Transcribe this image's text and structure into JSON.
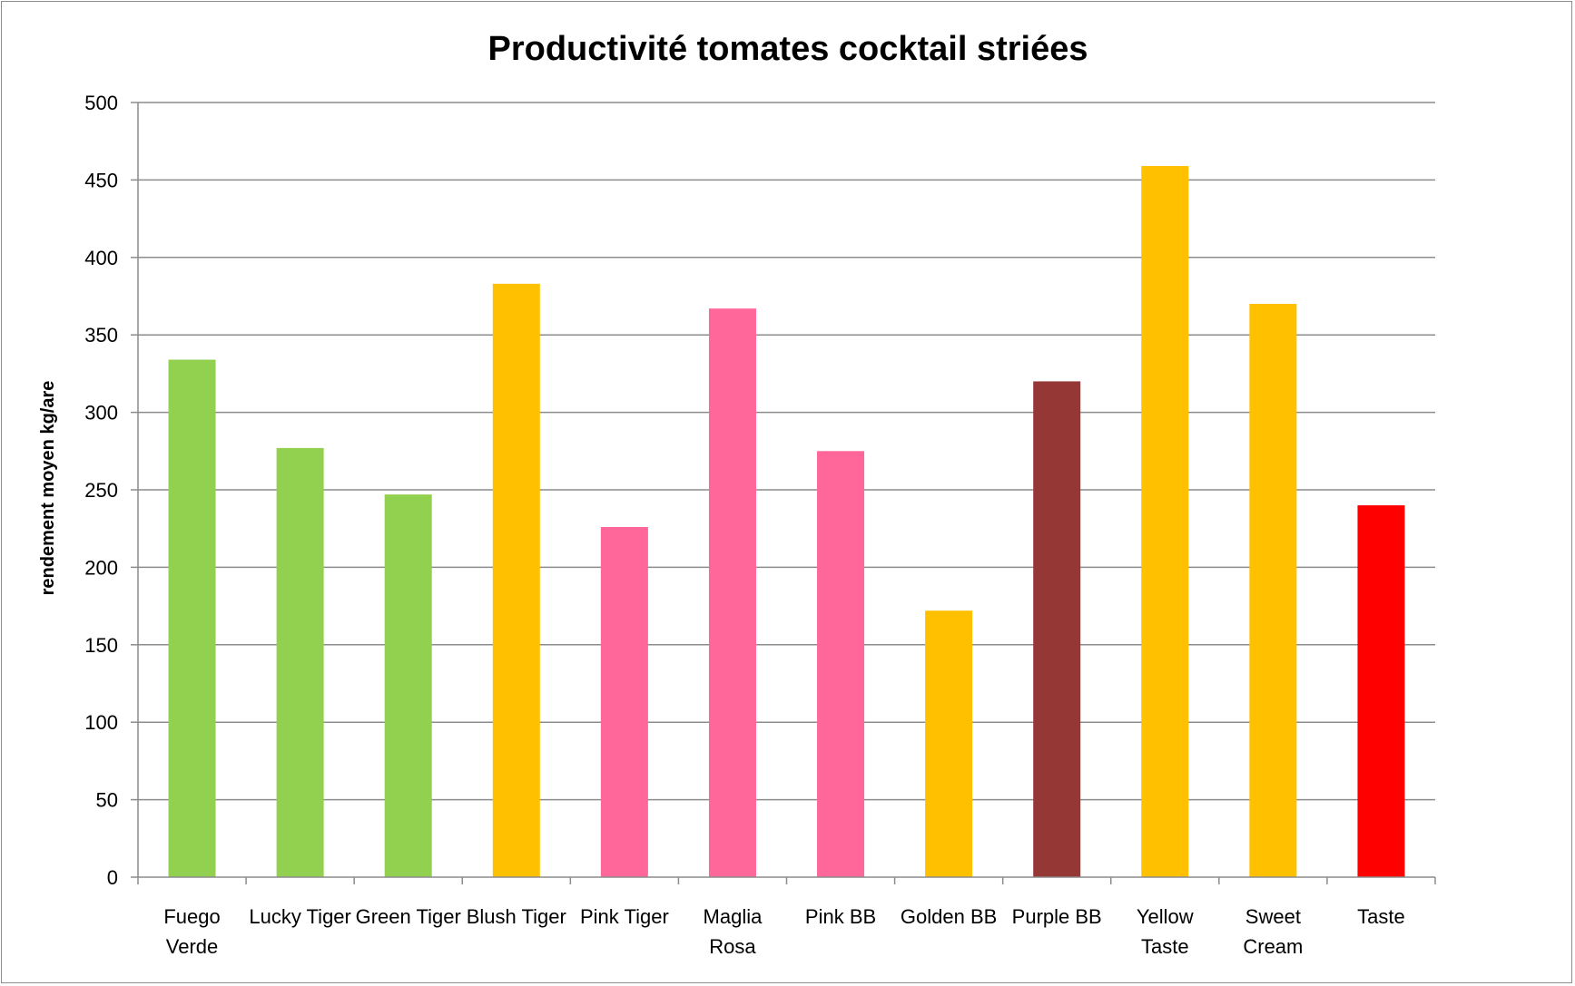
{
  "chart_data": {
    "type": "bar",
    "title": "Productivité tomates cocktail striées",
    "xlabel": "",
    "ylabel": "rendement moyen kg/are",
    "ylim": [
      0,
      500
    ],
    "yticks": [
      0,
      50,
      100,
      150,
      200,
      250,
      300,
      350,
      400,
      450,
      500
    ],
    "grid": true,
    "legend": "none",
    "categories": [
      [
        "Fuego",
        "Verde"
      ],
      [
        "Lucky Tiger"
      ],
      [
        "Green Tiger"
      ],
      [
        "Blush Tiger"
      ],
      [
        "Pink Tiger"
      ],
      [
        "Maglia",
        "Rosa"
      ],
      [
        "Pink BB"
      ],
      [
        "Golden BB"
      ],
      [
        "Purple BB"
      ],
      [
        "Yellow",
        "Taste"
      ],
      [
        "Sweet",
        "Cream"
      ],
      [
        "Taste"
      ]
    ],
    "values": [
      334,
      277,
      247,
      383,
      226,
      367,
      275,
      172,
      320,
      459,
      370,
      240
    ],
    "colors": [
      "#92d050",
      "#92d050",
      "#92d050",
      "#ffc000",
      "#ff6699",
      "#ff6699",
      "#ff6699",
      "#ffc000",
      "#953735",
      "#ffc000",
      "#ffc000",
      "#ff0000"
    ]
  }
}
